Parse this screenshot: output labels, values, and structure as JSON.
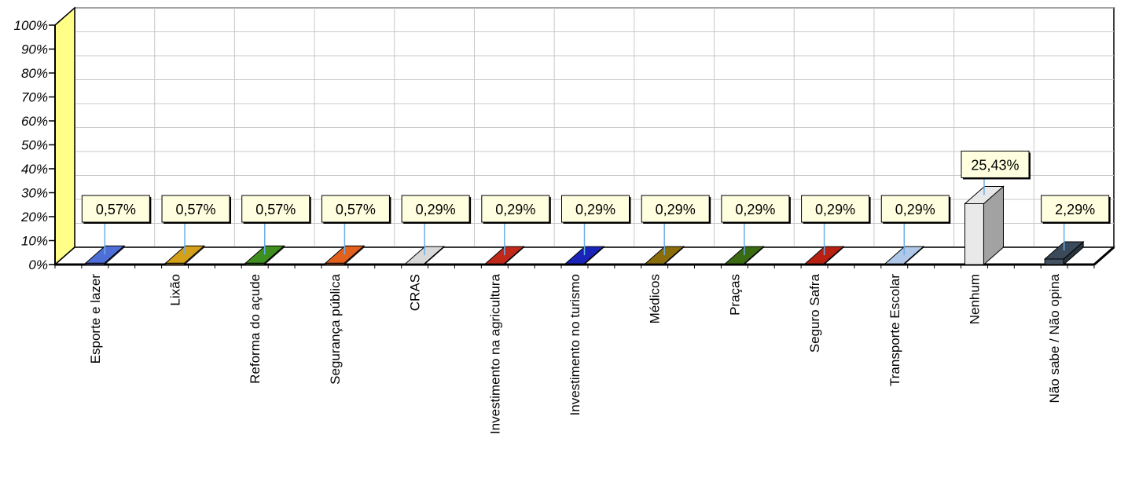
{
  "chart_data": {
    "type": "bar",
    "categories": [
      "Esporte e lazer",
      "Lixão",
      "Reforma do açude",
      "Segurança pública",
      "CRAS",
      "Investimento na agricultura",
      "Investimento no turismo",
      "Médicos",
      "Praças",
      "Seguro Safra",
      "Transporte Escolar",
      "Nenhum",
      "Não sabe / Não opina"
    ],
    "values": [
      0.57,
      0.57,
      0.57,
      0.57,
      0.29,
      0.29,
      0.29,
      0.29,
      0.29,
      0.29,
      0.29,
      25.43,
      2.29
    ],
    "data_labels": [
      "0,57%",
      "0,57%",
      "0,57%",
      "0,57%",
      "0,29%",
      "0,29%",
      "0,29%",
      "0,29%",
      "0,29%",
      "0,29%",
      "0,29%",
      "25,43%",
      "2,29%"
    ],
    "colors": [
      "#4f6fd8",
      "#d4a017",
      "#3f8f1f",
      "#e0601c",
      "#d8d8d8",
      "#c0281a",
      "#1a24b8",
      "#8a6d0a",
      "#3a6a12",
      "#b82012",
      "#b0c8e8",
      "#e8e8e8",
      "#3a4a5a"
    ],
    "ylim": [
      0,
      100
    ],
    "yticks": [
      "0%",
      "10%",
      "20%",
      "30%",
      "40%",
      "50%",
      "60%",
      "70%",
      "80%",
      "90%",
      "100%"
    ],
    "grid": true,
    "label_box_color": "#ffffe0",
    "side_wall_color": "#ffff88"
  }
}
